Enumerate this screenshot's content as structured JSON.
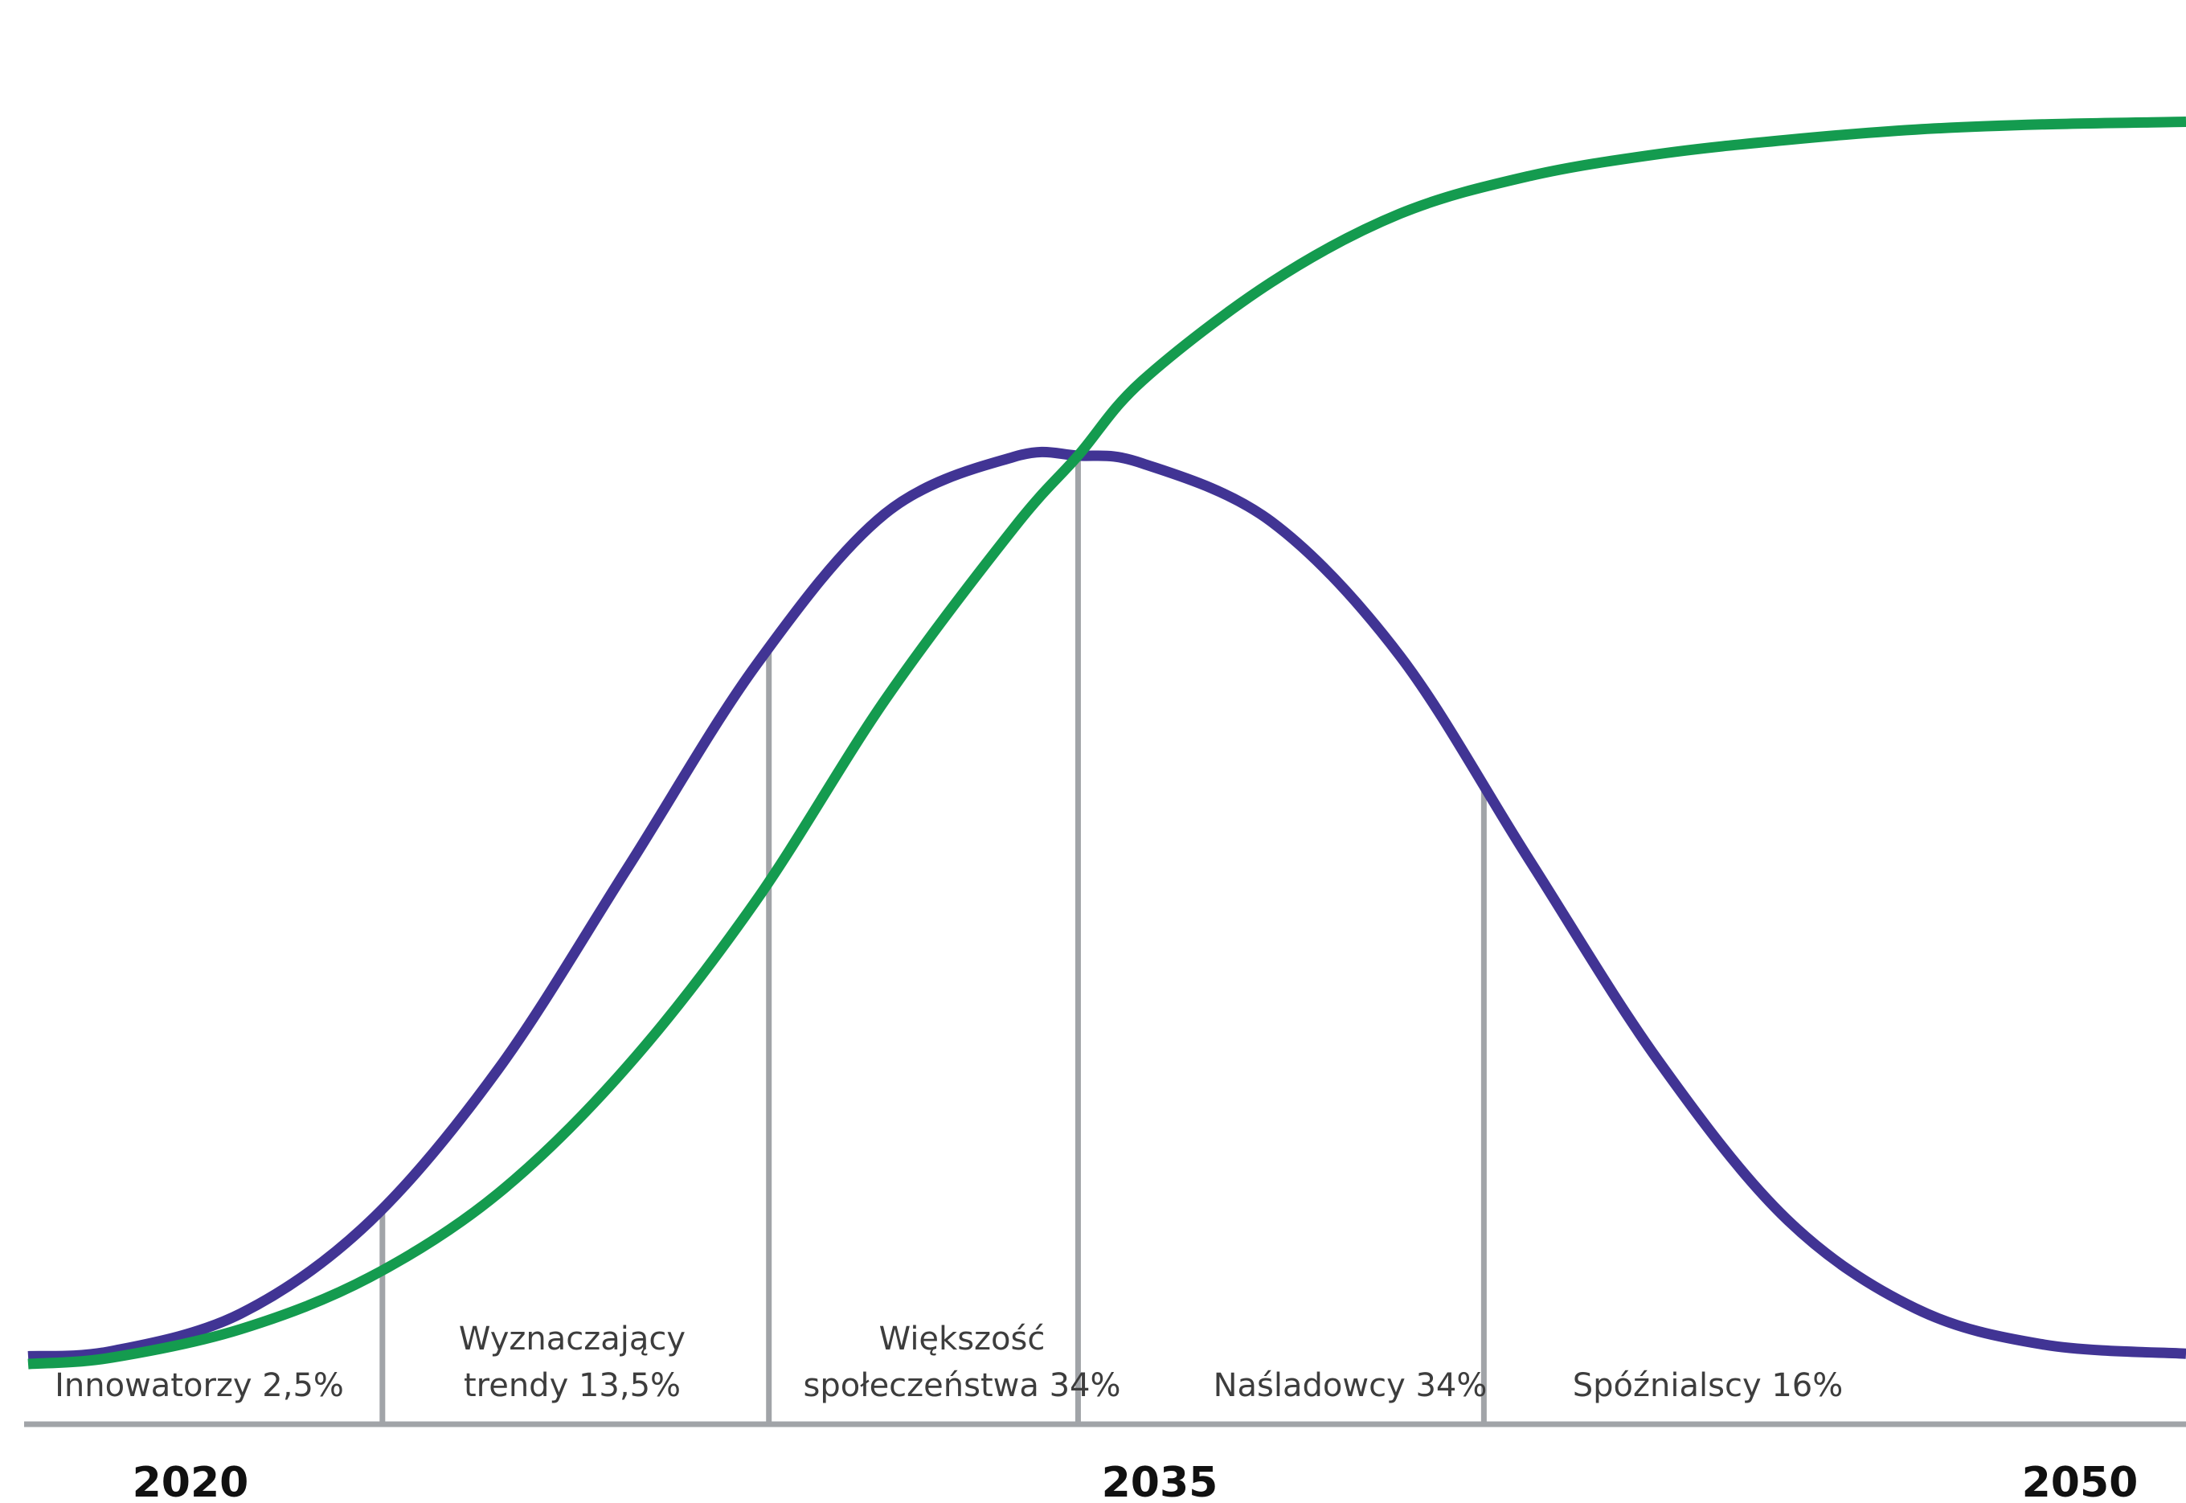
{
  "chart_data": {
    "type": "line",
    "title": "",
    "xlabel": "",
    "ylabel": "",
    "xlim": [
      2018.7,
      2052.2
    ],
    "ylim": [
      0,
      100
    ],
    "x_ticks": [
      "2020",
      "2035",
      "2050"
    ],
    "grid": false,
    "legend": "none",
    "series": [
      {
        "color": "#413494",
        "x": [
          2018.7,
          2020,
          2022,
          2024,
          2026,
          2028,
          2030,
          2032,
          2034,
          2035,
          2036,
          2038,
          2040,
          2042,
          2044,
          2046,
          2048,
          2050,
          2052.2
        ],
        "y": [
          1.4,
          1.8,
          4.7,
          11.8,
          23.6,
          39.1,
          54.8,
          66.5,
          70.9,
          71.0,
          70.4,
          65.9,
          55.5,
          39.8,
          24.3,
          12.0,
          5.1,
          2.3,
          1.6
        ]
      },
      {
        "color": "#149b4f",
        "x": [
          2018.7,
          2020,
          2022,
          2024,
          2026,
          2028,
          2030,
          2032,
          2034,
          2035,
          2036,
          2038,
          2040,
          2042,
          2044,
          2046,
          2048,
          2050,
          2052.2
        ],
        "y": [
          0.8,
          1.3,
          3.5,
          7.5,
          14.0,
          23.8,
          36.6,
          52.1,
          65.4,
          71.0,
          76.8,
          84.4,
          89.7,
          92.6,
          94.3,
          95.4,
          96.2,
          96.6,
          96.8
        ]
      }
    ],
    "segments": [
      {
        "lines": [
          "Innowatorzy 2,5%"
        ]
      },
      {
        "lines": [
          "Wyznaczający",
          "trendy 13,5%"
        ]
      },
      {
        "lines": [
          "Większość",
          "społeczeństwa 34%"
        ]
      },
      {
        "lines": [
          "Naśladowcy 34%"
        ]
      },
      {
        "lines": [
          "Spóźnialscy 16%"
        ]
      }
    ],
    "dividers_x": [
      2024.2,
      2030.2,
      2035.0,
      2041.3
    ]
  }
}
